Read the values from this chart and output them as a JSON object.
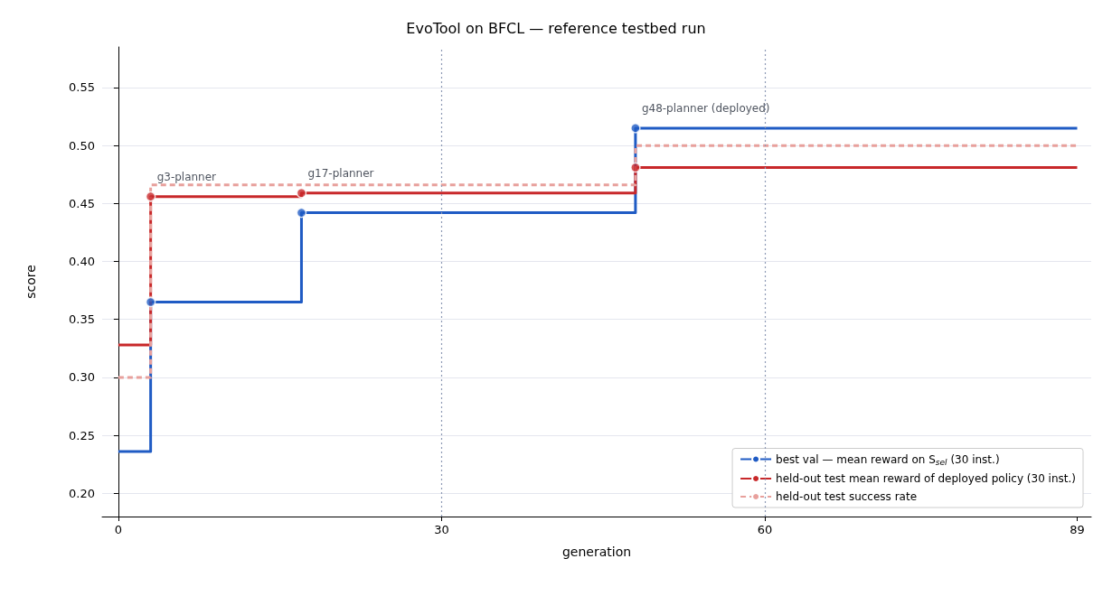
{
  "chart_data": {
    "type": "step",
    "title": "EvoTool on BFCL — reference testbed run",
    "xlabel": "generation",
    "ylabel": "score",
    "xlim": [
      -1.5,
      90.3
    ],
    "xticks": [
      0,
      30,
      60,
      89
    ],
    "ylim": [
      0.18,
      0.585
    ],
    "yticks": [
      {
        "value": 0.2,
        "label": "0.20"
      },
      0.25,
      {
        "value": 0.3,
        "label": "0.30"
      },
      0.35,
      {
        "value": 0.4,
        "label": "0.40"
      },
      0.45,
      {
        "value": 0.5,
        "label": "0.50"
      },
      0.55
    ],
    "grid": "y",
    "legend": "bottom right",
    "line_style": "solid",
    "marker": "none",
    "series": [
      {
        "name": "best val — mean reward on S$_{sel}$ (30 inst.)",
        "color": "#1f5bc4",
        "x": [
          0,
          3,
          17,
          48,
          89
        ],
        "values": [
          0.236,
          0.365,
          0.442,
          0.515,
          0.515
        ]
      },
      {
        "name": "held-out test mean reward of deployed policy (30 inst.)",
        "color": "#c8282a",
        "x": [
          0,
          3,
          17,
          48,
          89
        ],
        "values": [
          0.328,
          0.456,
          0.459,
          0.481,
          0.481
        ]
      },
      {
        "name": "held-out test success rate",
        "color": "#e8a09c",
        "line_style": "dashed",
        "x": [
          0,
          3,
          48,
          89
        ],
        "values": [
          0.3,
          0.466,
          0.5,
          0.5
        ]
      },
      {
        "type": "scatter",
        "marker": "circle",
        "color": "#1f5bc4",
        "x": [
          3,
          17,
          48
        ],
        "values": [
          0.365,
          0.442,
          0.515
        ]
      },
      {
        "type": "scatter",
        "marker": "circle",
        "color": "#c8282a",
        "x": [
          3,
          17,
          48
        ],
        "values": [
          0.456,
          0.459,
          0.481
        ]
      }
    ],
    "ref_lines": [
      {
        "axis": "x",
        "value": 30,
        "color": "#8e9ab5",
        "line_style": "dotted"
      },
      {
        "axis": "x",
        "value": 60,
        "color": "#8e9ab5",
        "line_style": "dotted"
      }
    ],
    "annotations": [
      {
        "text": "g3-planner",
        "x": 3,
        "y": 0.456
      },
      {
        "text": "g17-planner",
        "x": 17,
        "y": 0.459
      },
      {
        "text": "g48-planner (deployed)",
        "x": 48,
        "y": 0.515
      }
    ]
  }
}
